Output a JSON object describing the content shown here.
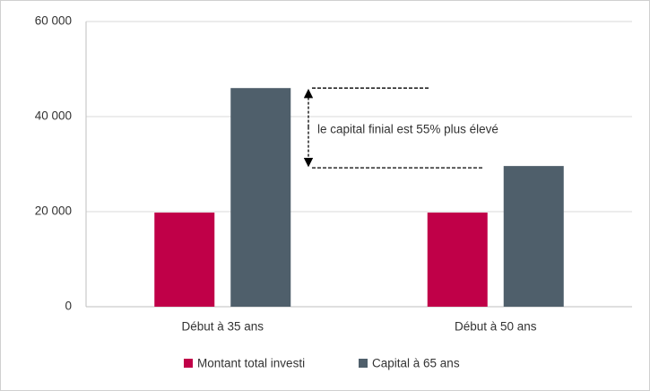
{
  "chart_data": {
    "type": "bar",
    "categories": [
      "Début à 35 ans",
      "Début à 50 ans"
    ],
    "series": [
      {
        "name": "Montant total investi",
        "color": "#c00048",
        "values": [
          19800,
          19800
        ]
      },
      {
        "name": "Capital à 65 ans",
        "color": "#4f5f6b",
        "values": [
          46000,
          29600
        ]
      }
    ],
    "ylim": [
      0,
      60000
    ],
    "yticks": [
      0,
      {
        "value": 20000,
        "label": "20 000"
      },
      {
        "value": 40000,
        "label": "40 000"
      },
      {
        "value": 60000,
        "label": "60 000"
      }
    ],
    "grid": true,
    "legend": "bottom",
    "annotation": "le capital finial est 55% plus élevé"
  }
}
